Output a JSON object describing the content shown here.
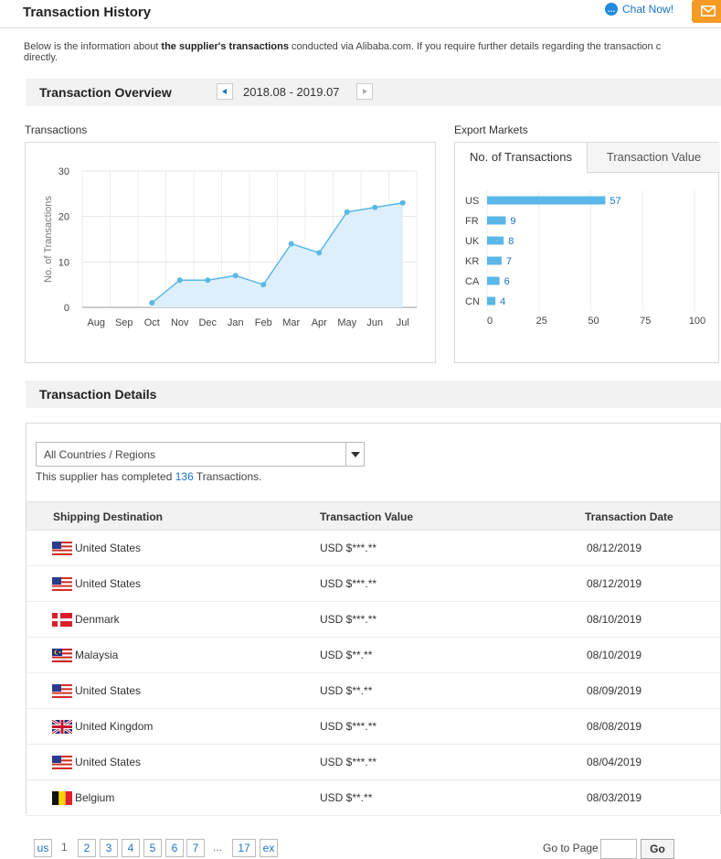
{
  "header": {
    "title": "Transaction History",
    "chat_label": "Chat Now!"
  },
  "intro": {
    "before": "Below is the information about ",
    "bold": "the supplier's transactions",
    "after": " conducted via Alibaba.com. If you require further details regarding the transaction c",
    "line2": "directly."
  },
  "overview": {
    "title": "Transaction Overview",
    "period": "2018.08 - 2019.07"
  },
  "transactions_chart": {
    "label": "Transactions"
  },
  "export_markets": {
    "label": "Export Markets",
    "tabs": [
      "No. of Transactions",
      "Transaction Value"
    ],
    "active_tab": 0
  },
  "chart_data": [
    {
      "type": "area",
      "title": "Transactions",
      "ylabel": "No. of Transactions",
      "xlabel": "",
      "categories": [
        "Aug",
        "Sep",
        "Oct",
        "Nov",
        "Dec",
        "Jan",
        "Feb",
        "Mar",
        "Apr",
        "May",
        "Jun",
        "Jul"
      ],
      "values": [
        null,
        null,
        1,
        6,
        6,
        7,
        5,
        14,
        12,
        21,
        22,
        23
      ],
      "ylim": [
        0,
        30
      ],
      "yticks": [
        0,
        10,
        20,
        30
      ],
      "grid": true,
      "color": "#5ab7e8",
      "fill_color": "#dceffa"
    },
    {
      "type": "bar",
      "orientation": "horizontal",
      "title": "Export Markets",
      "categories": [
        "US",
        "FR",
        "UK",
        "KR",
        "CA",
        "CN"
      ],
      "values": [
        57,
        9,
        8,
        7,
        6,
        4
      ],
      "xlim": [
        0,
        100
      ],
      "xticks": [
        0,
        25,
        50,
        75,
        100
      ],
      "grid": true,
      "color": "#5ab7e8"
    }
  ],
  "details": {
    "title": "Transaction Details",
    "select_value": "All Countries / Regions",
    "completed_before": "This supplier has completed ",
    "completed_count": "136",
    "completed_after": " Transactions.",
    "columns": [
      "Shipping Destination",
      "Transaction Value",
      "Transaction Date"
    ],
    "rows": [
      {
        "flag": "us",
        "destination": "United States",
        "value": "USD $***.**",
        "date": "08/12/2019"
      },
      {
        "flag": "us",
        "destination": "United States",
        "value": "USD $***.**",
        "date": "08/12/2019"
      },
      {
        "flag": "dk",
        "destination": "Denmark",
        "value": "USD $***.**",
        "date": "08/10/2019"
      },
      {
        "flag": "my",
        "destination": "Malaysia",
        "value": "USD $**.**",
        "date": "08/10/2019"
      },
      {
        "flag": "us",
        "destination": "United States",
        "value": "USD $**.**",
        "date": "08/09/2019"
      },
      {
        "flag": "gb",
        "destination": "United Kingdom",
        "value": "USD $***.**",
        "date": "08/08/2019"
      },
      {
        "flag": "us",
        "destination": "United States",
        "value": "USD $***.**",
        "date": "08/04/2019"
      },
      {
        "flag": "be",
        "destination": "Belgium",
        "value": "USD $**.**",
        "date": "08/03/2019"
      }
    ]
  },
  "pagination": {
    "prev_label": "us",
    "current": "1",
    "pages": [
      "2",
      "3",
      "4",
      "5",
      "6",
      "7"
    ],
    "ellipsis": "...",
    "last": "17",
    "next_label": "ex",
    "goto_label": "Go to Page",
    "go_label": "Go"
  },
  "colors": {
    "accent": "#1a73c8",
    "chart_blue": "#5ab7e8",
    "mail_orange": "#f59a23"
  },
  "icons": {
    "chat": "chat-bubble-icon",
    "mail": "mail-icon"
  }
}
